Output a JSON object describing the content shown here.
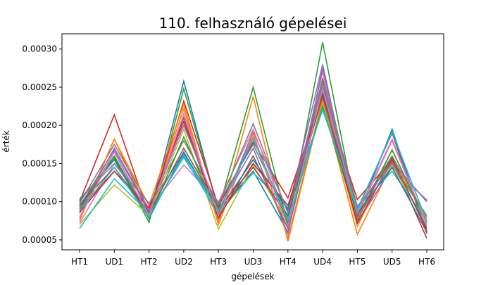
{
  "chart_data": {
    "type": "line",
    "title": "110. felhasználó gépelései",
    "xlabel": "gépelések",
    "ylabel": "érték",
    "categories": [
      "HT1",
      "UD1",
      "HT2",
      "UD2",
      "HT3",
      "UD3",
      "HT4",
      "UD4",
      "HT5",
      "UD5",
      "HT6"
    ],
    "ylim": [
      3.7e-05,
      0.00032
    ],
    "yticks": [
      5e-05,
      0.0001,
      0.00015,
      0.0002,
      0.00025,
      0.0003
    ],
    "ytick_labels": [
      "0.00005",
      "0.00010",
      "0.00015",
      "0.00020",
      "0.00025",
      "0.00030"
    ],
    "grid": false,
    "series": [
      {
        "color": "#1f77b4",
        "values": [
          8.5e-05,
          0.000165,
          8e-05,
          0.000258,
          8.8e-05,
          0.00014,
          6e-05,
          0.00025,
          8e-05,
          0.000195,
          6e-05
        ]
      },
      {
        "color": "#ff7f0e",
        "values": [
          7.8e-05,
          0.000182,
          8.5e-05,
          0.000222,
          7.2e-05,
          0.000238,
          4.8e-05,
          0.000232,
          5.7e-05,
          0.00015,
          8e-05
        ]
      },
      {
        "color": "#2ca02c",
        "values": [
          9.5e-05,
          0.000158,
          7.3e-05,
          0.000248,
          9e-05,
          0.00025,
          7e-05,
          0.000309,
          7.8e-05,
          0.000168,
          7e-05
        ]
      },
      {
        "color": "#d62728",
        "values": [
          0.0001,
          0.000214,
          8.2e-05,
          0.000232,
          9.4e-05,
          0.000178,
          0.000105,
          0.00024,
          0.000103,
          0.000155,
          5.2e-05
        ]
      },
      {
        "color": "#9467bd",
        "values": [
          8.8e-05,
          0.00017,
          9e-05,
          0.000165,
          8e-05,
          0.000192,
          8.8e-05,
          0.00028,
          7.2e-05,
          0.000145,
          0.000102
        ]
      },
      {
        "color": "#8c564b",
        "values": [
          9e-05,
          0.00014,
          8.8e-05,
          0.00021,
          7.8e-05,
          0.00016,
          6.5e-05,
          0.000262,
          9e-05,
          0.00019,
          5.8e-05
        ]
      },
      {
        "color": "#e377c2",
        "values": [
          7.2e-05,
          0.00015,
          9e-05,
          0.000148,
          0.0001,
          0.000195,
          7.5e-05,
          0.00027,
          8.2e-05,
          0.00018,
          6.8e-05
        ]
      },
      {
        "color": "#7f7f7f",
        "values": [
          9.8e-05,
          0.000175,
          9.5e-05,
          0.00018,
          9.8e-05,
          0.000175,
          8e-05,
          0.000255,
          8.8e-05,
          0.00016,
          7.8e-05
        ]
      },
      {
        "color": "#bcbd22",
        "values": [
          7e-05,
          0.000122,
          8.2e-05,
          0.000195,
          6.4e-05,
          0.000148,
          7.2e-05,
          0.000228,
          8e-05,
          0.000148,
          6.8e-05
        ]
      },
      {
        "color": "#17becf",
        "values": [
          6.5e-05,
          0.00013,
          8.5e-05,
          0.000158,
          8.5e-05,
          0.000138,
          9.2e-05,
          0.00022,
          9.2e-05,
          0.00014,
          7.5e-05
        ]
      },
      {
        "color": "#1f77b4",
        "values": [
          0.000102,
          0.000155,
          7.8e-05,
          0.000165,
          8.8e-05,
          0.000155,
          9e-05,
          0.000245,
          8.5e-05,
          0.000145,
          6e-05
        ]
      },
      {
        "color": "#ff7f0e",
        "values": [
          7.5e-05,
          0.000182,
          9.5e-05,
          0.000228,
          7e-05,
          0.00019,
          5.2e-05,
          0.000235,
          6.8e-05,
          0.000158,
          7.8e-05
        ]
      },
      {
        "color": "#2ca02c",
        "values": [
          9.2e-05,
          0.00016,
          7.8e-05,
          0.000185,
          8.5e-05,
          0.000185,
          7.2e-05,
          0.000225,
          7.5e-05,
          0.000168,
          7.2e-05
        ]
      },
      {
        "color": "#d62728",
        "values": [
          8.6e-05,
          0.00014,
          9.2e-05,
          0.000205,
          8e-05,
          0.00015,
          9.5e-05,
          0.00024,
          7.2e-05,
          0.000155,
          6.5e-05
        ]
      },
      {
        "color": "#9467bd",
        "values": [
          9.4e-05,
          0.000168,
          8.8e-05,
          0.0002,
          9e-05,
          0.00017,
          5.8e-05,
          0.000275,
          7.8e-05,
          0.000152,
          0.0001
        ]
      },
      {
        "color": "#8c564b",
        "values": [
          9.6e-05,
          0.000145,
          8.5e-05,
          0.00017,
          9.2e-05,
          0.000145,
          8.2e-05,
          0.000238,
          8.2e-05,
          0.000158,
          6.2e-05
        ]
      },
      {
        "color": "#e377c2",
        "values": [
          8e-05,
          0.000165,
          8.2e-05,
          0.000215,
          8.2e-05,
          0.000185,
          6.8e-05,
          0.000248,
          8.5e-05,
          0.000182,
          7e-05
        ]
      },
      {
        "color": "#7f7f7f",
        "values": [
          0.000104,
          0.00015,
          9.8e-05,
          0.00016,
          9.6e-05,
          0.000202,
          8.5e-05,
          0.00026,
          9.4e-05,
          0.00015,
          8.2e-05
        ]
      },
      {
        "color": "#17becf",
        "values": [
          8.8e-05,
          0.000145,
          8e-05,
          0.000162,
          8.8e-05,
          0.000182,
          7.6e-05,
          0.000222,
          8.8e-05,
          0.000192,
          7.4e-05
        ]
      }
    ]
  }
}
